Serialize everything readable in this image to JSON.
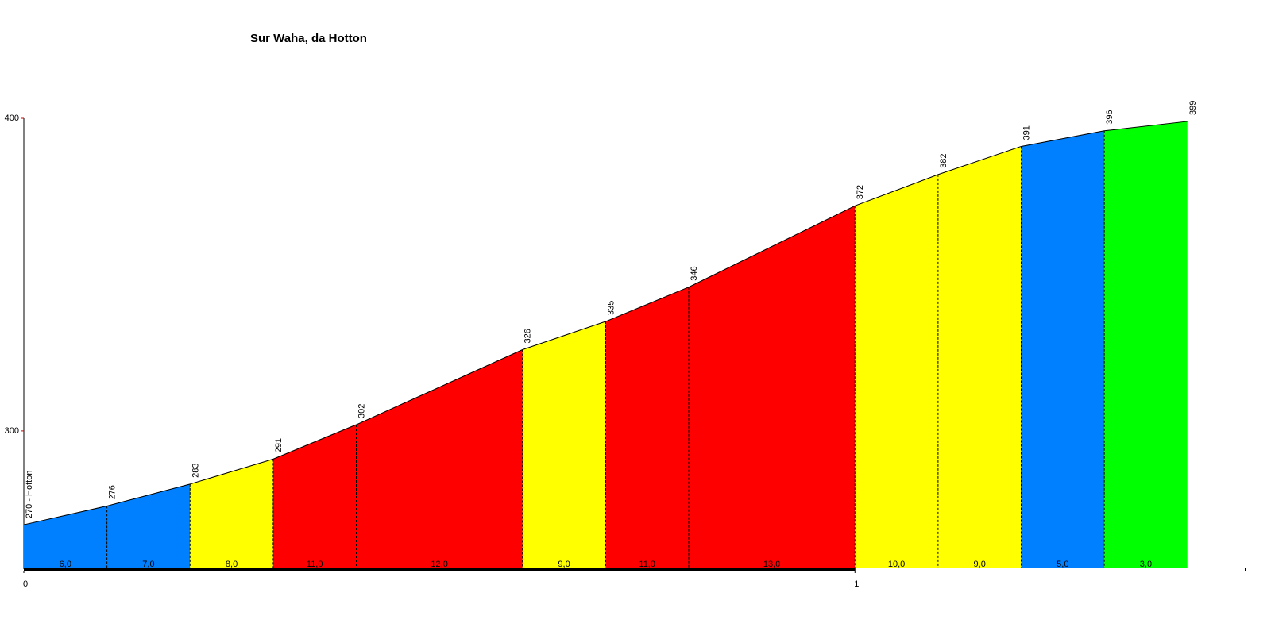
{
  "chart_data": {
    "type": "profile",
    "title": "Sur Waha, da Hotton",
    "x": [
      0,
      0.1,
      0.2,
      0.3,
      0.4,
      0.6,
      0.7,
      0.8,
      1.0,
      1.1,
      1.2,
      1.3,
      1.4
    ],
    "values": [
      270,
      276,
      283,
      291,
      302,
      326,
      335,
      346,
      372,
      382,
      391,
      396,
      399
    ],
    "value_labels": [
      "270 - Hotton",
      "276",
      "283",
      "291",
      "302",
      "326",
      "335",
      "346",
      "372",
      "382",
      "391",
      "396",
      "399"
    ],
    "segment_divisions": [
      0.1,
      0.2,
      0.3,
      0.4,
      0.6,
      0.7,
      0.8,
      1.0,
      1.1,
      1.2,
      1.3
    ],
    "gradients": [
      6,
      7,
      8,
      11,
      12,
      9,
      11,
      13,
      10,
      9,
      5,
      3
    ],
    "gradient_labels": [
      "6,0",
      "7,0",
      "8,0",
      "11,0",
      "12,0",
      "9,0",
      "11,0",
      "13,0",
      "10,0",
      "9,0",
      "5,0",
      "3,0"
    ],
    "segment_colors": [
      "#0080ff",
      "#0080ff",
      "#ffff00",
      "#ff0000",
      "#ff0000",
      "#ffff00",
      "#ff0000",
      "#ff0000",
      "#ffff00",
      "#ffff00",
      "#0080ff",
      "#00ff00"
    ],
    "xlim": [
      0,
      1.47
    ],
    "ylim": [
      255.8,
      400
    ],
    "xticks": [
      0,
      1
    ],
    "yticks": [
      300,
      400
    ]
  }
}
